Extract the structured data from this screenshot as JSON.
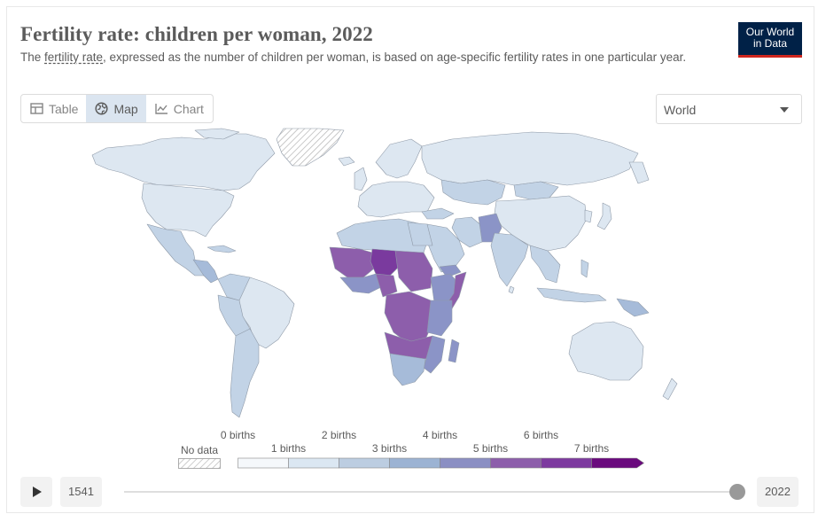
{
  "header": {
    "title": "Fertility rate: children per woman, 2022",
    "subtitle_prefix": "The ",
    "subtitle_link": "fertility rate",
    "subtitle_rest": ", expressed as the number of children per woman, is based on age-specific fertility rates in one particular year.",
    "logo_line1": "Our World",
    "logo_line2": "in Data"
  },
  "tabs": [
    {
      "label": "Table",
      "icon": "table-icon",
      "active": false
    },
    {
      "label": "Map",
      "icon": "globe-icon",
      "active": true
    },
    {
      "label": "Chart",
      "icon": "line-chart-icon",
      "active": false
    }
  ],
  "region_select": {
    "value": "World"
  },
  "legend": {
    "no_data_label": "No data",
    "top_labels": [
      "0 births",
      "2 births",
      "4 births",
      "6 births"
    ],
    "bottom_labels": [
      "1 births",
      "3 births",
      "5 births",
      "7 births"
    ],
    "bin_colors": [
      "#f5f8fb",
      "#dbe7f2",
      "#bccde1",
      "#9cb3d3",
      "#8b8fc3",
      "#8d5eab",
      "#7d3a9f",
      "#6a0a7d"
    ]
  },
  "colors": {
    "low": "#dde7f1",
    "mid_low": "#c2d3e6",
    "mid": "#a6bbd9",
    "mid_high": "#8b94c7",
    "high": "#8d5eab",
    "highest": "#7a3a9e",
    "border": "#8f9aa8",
    "no_data": "#ffffff"
  },
  "timeline": {
    "start": "1541",
    "end": "2022"
  }
}
